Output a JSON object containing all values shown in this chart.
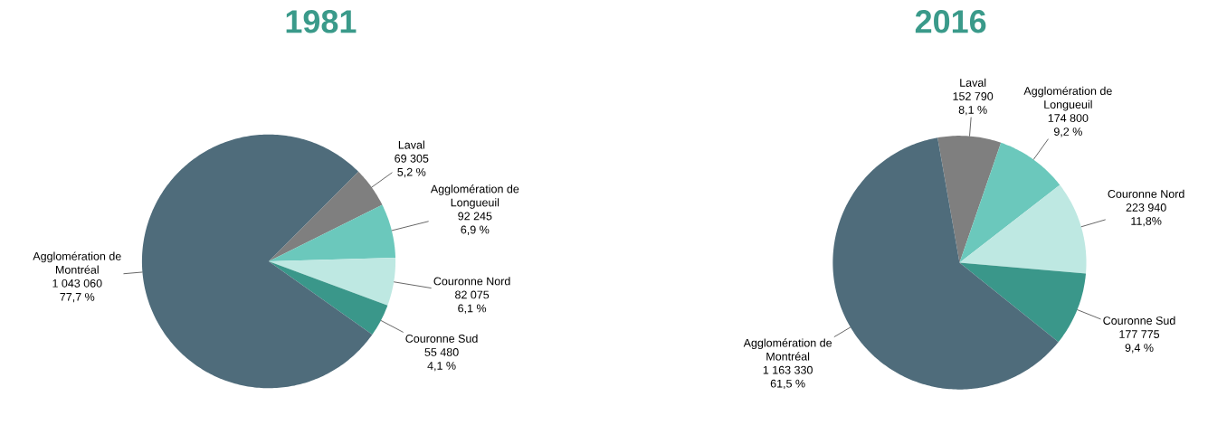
{
  "chart_data": [
    {
      "type": "pie",
      "title": "1981",
      "categories": [
        "Laval",
        "Agglomération de Longueuil",
        "Couronne Nord",
        "Couronne Sud",
        "Agglomération de Montréal"
      ],
      "values": [
        69305,
        92245,
        82075,
        55480,
        1043060
      ],
      "value_labels": [
        "69 305 5,2 %",
        "92 245 6,9 %",
        "82 075 6,1 %",
        "55 480 4,1 %",
        "1 043 060 77,7 %"
      ],
      "colors": [
        "#7f7f7f",
        "#6bc8bc",
        "#bee8e2",
        "#3a978a",
        "#4f6c7b"
      ]
    },
    {
      "type": "pie",
      "title": "2016",
      "categories": [
        "Laval",
        "Agglomération de Longueuil",
        "Couronne Nord",
        "Couronne Sud",
        "Agglomération de Montréal"
      ],
      "values": [
        152790,
        174800,
        223940,
        177775,
        1163330
      ],
      "value_labels": [
        "152 790 8,1 %",
        "174 800 9,2 %",
        "223 940 11,8%",
        "177 775 9,4 %",
        "1 163 330 61,5 %"
      ],
      "colors": [
        "#7f7f7f",
        "#6bc8bc",
        "#bee8e2",
        "#3a978a",
        "#4f6c7b"
      ]
    }
  ]
}
